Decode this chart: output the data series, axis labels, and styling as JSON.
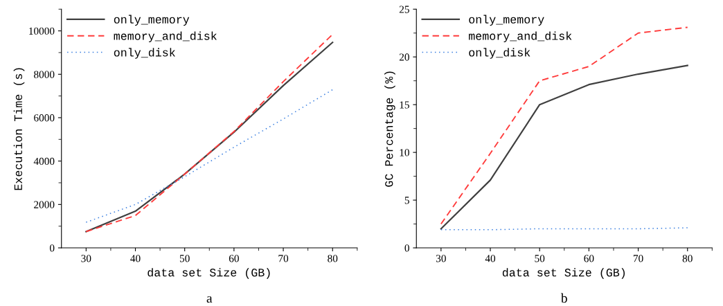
{
  "chart_data": [
    {
      "type": "line",
      "xlabel": "data set Size (GB)",
      "ylabel": "Execution Time (s)",
      "x": [
        30,
        40,
        50,
        60,
        70,
        80
      ],
      "xlim": [
        25,
        85
      ],
      "xticks": [
        30,
        40,
        50,
        60,
        70,
        80
      ],
      "ylim": [
        0,
        11000
      ],
      "yticks": [
        0,
        2000,
        4000,
        6000,
        8000,
        10000
      ],
      "legend": "top left",
      "grid": false,
      "annotations": [
        "a"
      ],
      "series": [
        {
          "name": "only_memory",
          "color": "#404040",
          "line_style": "solid",
          "values": [
            750,
            1690,
            3400,
            5330,
            7480,
            9470
          ]
        },
        {
          "name": "memory_and_disk",
          "color": "#ff3b3b",
          "line_style": "dashed",
          "values": [
            750,
            1490,
            3400,
            5360,
            7660,
            9840
          ]
        },
        {
          "name": "only_disk",
          "color": "#3a7fe0",
          "line_style": "dotted",
          "values": [
            1180,
            2000,
            3280,
            4640,
            5940,
            7290
          ]
        }
      ]
    },
    {
      "type": "line",
      "xlabel": "data set Size (GB)",
      "ylabel": "GC Percentage (%)",
      "x": [
        30,
        40,
        50,
        60,
        70,
        80
      ],
      "xlim": [
        25,
        85
      ],
      "xticks": [
        30,
        40,
        50,
        60,
        70,
        80
      ],
      "ylim": [
        0,
        25
      ],
      "yticks": [
        0,
        5,
        10,
        15,
        20,
        25
      ],
      "legend": "top left",
      "grid": false,
      "annotations": [
        "b"
      ],
      "series": [
        {
          "name": "only_memory",
          "color": "#404040",
          "line_style": "solid",
          "values": [
            2.0,
            7.1,
            15.0,
            17.1,
            18.2,
            19.1
          ]
        },
        {
          "name": "memory_and_disk",
          "color": "#ff3b3b",
          "line_style": "dashed",
          "values": [
            2.5,
            9.9,
            17.5,
            19.0,
            22.5,
            23.1
          ]
        },
        {
          "name": "only_disk",
          "color": "#3a7fe0",
          "line_style": "dotted",
          "values": [
            1.9,
            1.9,
            2.0,
            2.0,
            2.0,
            2.1
          ]
        }
      ]
    }
  ]
}
